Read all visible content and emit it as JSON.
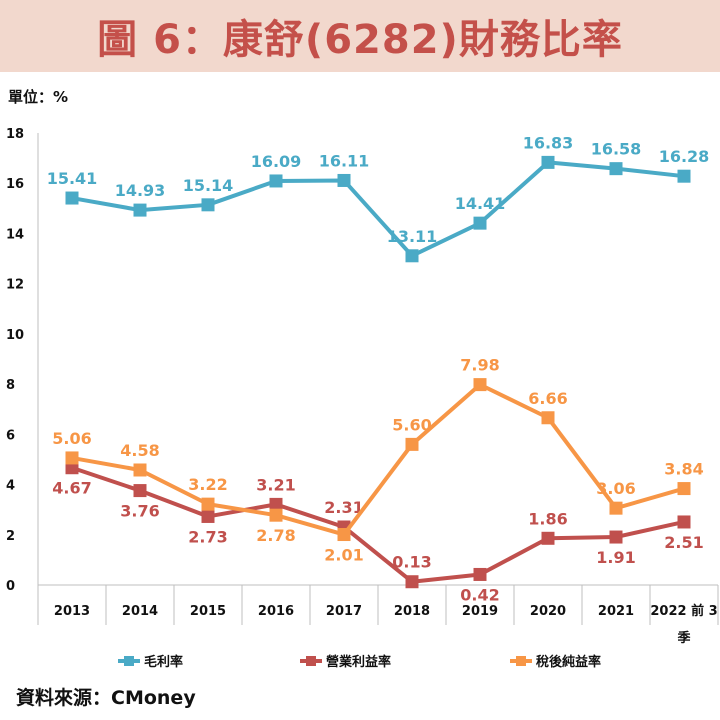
{
  "title": "圖 6：康舒(6282)財務比率",
  "unit_label": "單位：%",
  "source": "資料來源：CMoney",
  "colors": {
    "gross_margin": "#4aaac6",
    "operating_margin": "#c0504d",
    "net_margin": "#f79646",
    "title_bg": "#f2d8cd",
    "title_text": "#c4504a"
  },
  "chart_data": {
    "type": "line",
    "categories": [
      "2013",
      "2014",
      "2015",
      "2016",
      "2017",
      "2018",
      "2019",
      "2020",
      "2021",
      "2022 前 3 季"
    ],
    "category_lines": [
      [
        "2013"
      ],
      [
        "2014"
      ],
      [
        "2015"
      ],
      [
        "2016"
      ],
      [
        "2017"
      ],
      [
        "2018"
      ],
      [
        "2019"
      ],
      [
        "2020"
      ],
      [
        "2021"
      ],
      [
        "2022 前 3",
        "季"
      ]
    ],
    "ylim": [
      0,
      18
    ],
    "yticks": [
      0,
      2,
      4,
      6,
      8,
      10,
      12,
      14,
      16,
      18
    ],
    "grid": false,
    "legend_position": "bottom",
    "series": [
      {
        "name": "毛利率",
        "color_key": "gross_margin",
        "values": [
          15.41,
          14.93,
          15.14,
          16.09,
          16.11,
          13.11,
          14.41,
          16.83,
          16.58,
          16.28
        ],
        "labels": [
          "15.41",
          "14.93",
          "15.14",
          "16.09",
          "16.11",
          "13.11",
          "14.41",
          "16.83",
          "16.58",
          "16.28"
        ]
      },
      {
        "name": "營業利益率",
        "color_key": "operating_margin",
        "values": [
          4.67,
          3.76,
          2.73,
          3.21,
          2.31,
          0.13,
          0.42,
          1.86,
          1.91,
          2.51
        ],
        "labels": [
          "4.67",
          "3.76",
          "2.73",
          "3.21",
          "2.31",
          "0.13",
          "0.42",
          "1.86",
          "1.91",
          "2.51"
        ]
      },
      {
        "name": "稅後純益率",
        "color_key": "net_margin",
        "values": [
          5.06,
          4.58,
          3.22,
          2.78,
          2.01,
          5.6,
          7.98,
          6.66,
          3.06,
          3.84
        ],
        "labels": [
          "5.06",
          "4.58",
          "3.22",
          "2.78",
          "2.01",
          "5.60",
          "7.98",
          "6.66",
          "3.06",
          "3.84"
        ]
      }
    ]
  }
}
